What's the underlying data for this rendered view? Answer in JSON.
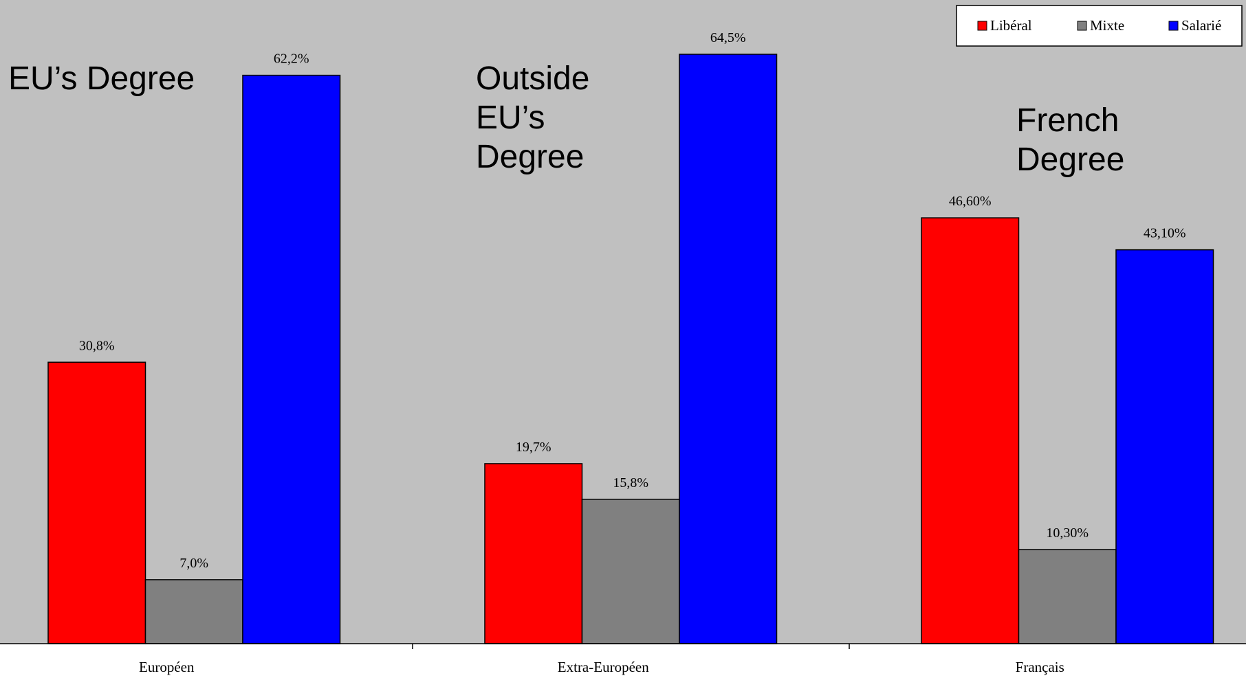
{
  "chart_data": {
    "type": "bar",
    "categories": [
      "Européen",
      "Extra-Européen",
      "Français"
    ],
    "series": [
      {
        "name": "Libéral",
        "color": "#ff0000",
        "values": [
          30.8,
          19.7,
          46.6
        ],
        "labels": [
          "30,8%",
          "19,7%",
          "46,60%"
        ]
      },
      {
        "name": "Mixte",
        "color": "#808080",
        "values": [
          7.0,
          15.8,
          10.3
        ],
        "labels": [
          "7,0%",
          "15,8%",
          "10,30%"
        ]
      },
      {
        "name": "Salarié",
        "color": "#0000ff",
        "values": [
          62.2,
          64.5,
          43.1
        ],
        "labels": [
          "62,2%",
          "64,5%",
          "43,10%"
        ]
      }
    ],
    "annotations": [
      {
        "lines": [
          "EU’s Degree"
        ]
      },
      {
        "lines": [
          "Outside",
          "EU’s",
          "Degree"
        ]
      },
      {
        "lines": [
          "French",
          "Degree"
        ]
      }
    ],
    "title": "",
    "xlabel": "",
    "ylabel": "",
    "ylim": [
      0,
      67.5
    ],
    "grid": false,
    "legend_position": "top-right",
    "background_color": "#c0c0c0"
  }
}
